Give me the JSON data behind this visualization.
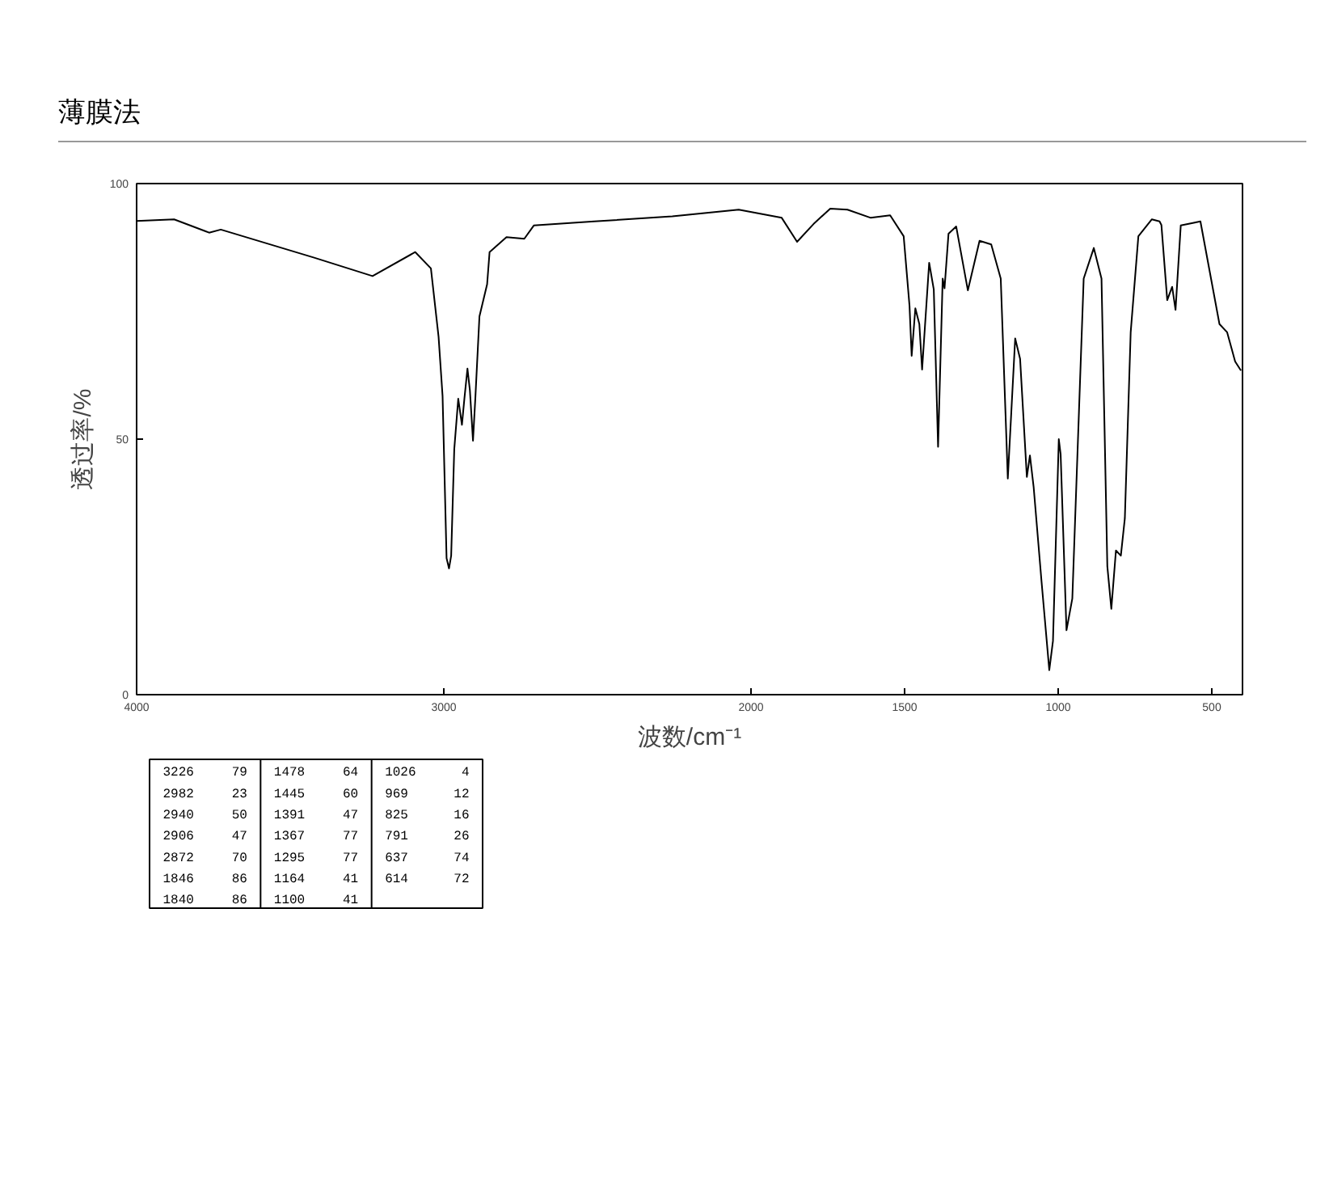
{
  "chart_data": {
    "type": "line",
    "title": "薄膜法",
    "xlabel": "波数/cm⁻¹",
    "ylabel": "透过率/%",
    "xlim": [
      4000,
      400
    ],
    "ylim": [
      0,
      100
    ],
    "xticks": [
      4000,
      3000,
      2000,
      1500,
      1000,
      500
    ],
    "yticks": [
      0,
      50,
      100
    ],
    "grid": false,
    "series": [
      {
        "color": "#000000",
        "x": [
          4000,
          3878,
          3764,
          3726,
          3422,
          3232,
          3093,
          3042,
          3017,
          3004,
          2991,
          2983,
          2976,
          2966,
          2953,
          2941,
          2933,
          2923,
          2915,
          2905,
          2897,
          2884,
          2859,
          2851,
          2796,
          2738,
          2707,
          2510,
          2256,
          2040,
          1900,
          1850,
          1793,
          1742,
          1686,
          1610,
          1547,
          1503,
          1484,
          1477,
          1465,
          1452,
          1443,
          1420,
          1405,
          1391,
          1376,
          1370,
          1357,
          1332,
          1294,
          1256,
          1218,
          1187,
          1164,
          1140,
          1124,
          1102,
          1092,
          1080,
          1054,
          1029,
          1017,
          998,
          992,
          973,
          954,
          917,
          884,
          859,
          840,
          827,
          812,
          796,
          783,
          764,
          739,
          695,
          670,
          664,
          645,
          629,
          618,
          601,
          562,
          537,
          512,
          475,
          450,
          424,
          405
        ],
        "values": [
          92.7,
          93,
          90.4,
          91,
          85.5,
          81.9,
          86.6,
          83.4,
          70,
          58.4,
          26.7,
          24.7,
          27.2,
          48,
          57.9,
          52.8,
          57.9,
          63.8,
          59.5,
          49.7,
          58.4,
          74,
          80.3,
          86.6,
          89.5,
          89.2,
          91.8,
          92.6,
          93.6,
          94.9,
          93.3,
          88.6,
          92.3,
          95.1,
          94.9,
          93.3,
          93.8,
          89.7,
          76.1,
          66.3,
          75.6,
          72.5,
          63.6,
          84.5,
          79.3,
          48.5,
          81.4,
          79.5,
          90.2,
          91.6,
          79.1,
          88.8,
          88.1,
          81.4,
          42.3,
          69.7,
          65.7,
          42.6,
          46.8,
          40.7,
          22,
          4.8,
          10.5,
          50,
          47,
          12.6,
          18.8,
          81.4,
          87.4,
          81.4,
          25.1,
          16.8,
          28.2,
          27.2,
          34.5,
          70.9,
          89.7,
          93,
          92.6,
          91.9,
          77.2,
          79.8,
          75.3,
          91.8,
          92.3,
          92.6,
          84.5,
          72.5,
          70.9,
          65.2,
          63.4
        ]
      }
    ],
    "annotations": [
      "3226",
      "79",
      "2982",
      "23",
      "2940",
      "50",
      "2906",
      "47",
      "2872",
      "70",
      "1846",
      "86",
      "1840",
      "86",
      "1478",
      "64",
      "1445",
      "60",
      "1391",
      "47",
      "1367",
      "77",
      "1295",
      "77",
      "1164",
      "41",
      "1100",
      "41",
      "1026",
      "4",
      "969",
      "12",
      "825",
      "16",
      "791",
      "26",
      "637",
      "74",
      "614",
      "72"
    ]
  }
}
